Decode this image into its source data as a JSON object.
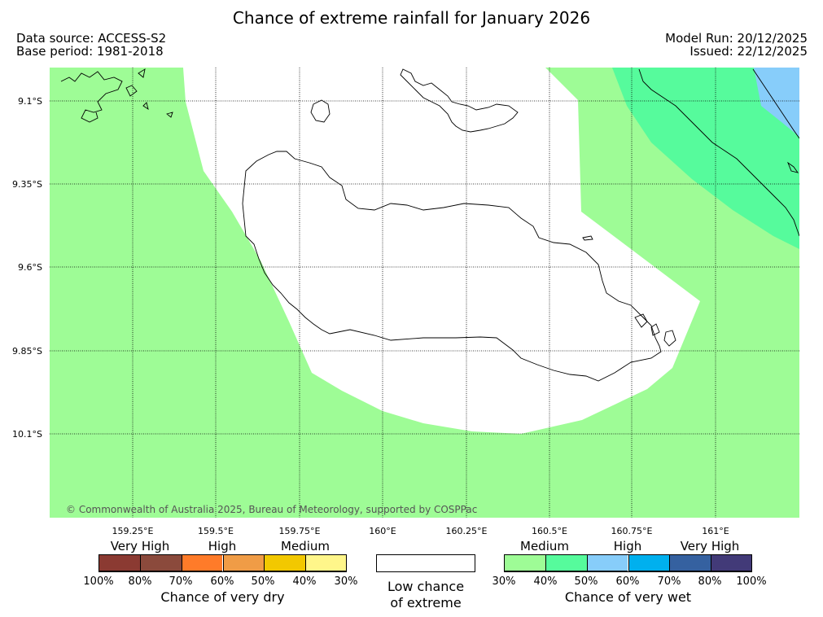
{
  "title": "Chance of extreme rainfall for January 2026",
  "header_left": [
    "Data source: ACCESS-S2",
    "Base period: 1981-2018"
  ],
  "header_right": [
    "Model Run: 20/12/2025",
    "Issued: 22/12/2025"
  ],
  "copyright": "© Commonwealth of Australia 2025, Bureau of Meteorology, supported by COSPPac",
  "lat_labels": [
    "9.1°S",
    "9.35°S",
    "9.6°S",
    "9.85°S",
    "10.1°S"
  ],
  "lon_labels": [
    "159.25°E",
    "159.5°E",
    "159.75°E",
    "160°E",
    "160.25°E",
    "160.5°E",
    "160.75°E",
    "161°E"
  ],
  "colors": {
    "land_outline": "#000000",
    "gridline": "#000000",
    "low_chance": "#ffffff",
    "wet_30_40": "#9efc96",
    "wet_40_50": "#56fb9c",
    "wet_50_60": "#87cdfa",
    "wet_60_70": "#00b0ee",
    "wet_70_80": "#3561a0",
    "wet_80_100": "#423a78",
    "dry_80_100": "#8b3a32",
    "dry_70_80": "#8b4a3c",
    "dry_60_70": "#ff7b29",
    "dry_50_60": "#f09c46",
    "dry_40_50": "#f2c800",
    "dry_30_40": "#fff68a"
  },
  "dry_legend": {
    "categories": [
      "Very High",
      "High",
      "Medium"
    ],
    "ticks": [
      "100%",
      "80%",
      "70%",
      "60%",
      "50%",
      "40%",
      "30%"
    ],
    "title": "Chance of very dry",
    "colors": [
      "#8b3a32",
      "#8b4a3c",
      "#ff7b29",
      "#f09c46",
      "#f2c800",
      "#fff68a"
    ]
  },
  "low_legend": {
    "title_line1": "Low chance",
    "title_line2": "of extreme"
  },
  "wet_legend": {
    "categories": [
      "Medium",
      "High",
      "Very High"
    ],
    "ticks": [
      "30%",
      "40%",
      "50%",
      "60%",
      "70%",
      "80%",
      "100%"
    ],
    "title": "Chance of very wet",
    "colors": [
      "#9efc96",
      "#56fb9c",
      "#87cdfa",
      "#00b0ee",
      "#3561a0",
      "#423a78"
    ]
  }
}
